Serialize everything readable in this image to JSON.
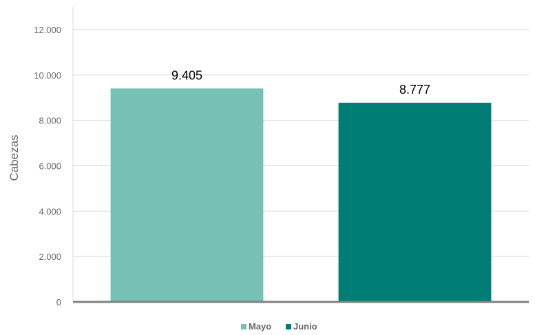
{
  "chart_data": {
    "type": "bar",
    "categories": [
      "Mayo",
      "Junio"
    ],
    "series": [
      {
        "name": "Mayo",
        "values": [
          9405,
          null
        ]
      },
      {
        "name": "Junio",
        "values": [
          null,
          8777
        ]
      }
    ],
    "data_labels": [
      "9.405",
      "8.777"
    ],
    "title": "",
    "xlabel": "",
    "ylabel": "Cabezas",
    "ylim": [
      0,
      13000
    ],
    "yticks": [
      0,
      2000,
      4000,
      6000,
      8000,
      10000,
      12000
    ],
    "ytick_labels": [
      "0",
      "2.000",
      "4.000",
      "6.000",
      "8.000",
      "10.000",
      "12.000"
    ],
    "grid": true,
    "legend_position": "bottom",
    "legend": [
      {
        "label": "Mayo",
        "color": "#76c0b6"
      },
      {
        "label": "Junio",
        "color": "#007d74"
      }
    ],
    "colors": {
      "Mayo": "#76c0b6",
      "Junio": "#007d74",
      "gridline": "#d9d9d9",
      "baseline": "#808080"
    }
  }
}
